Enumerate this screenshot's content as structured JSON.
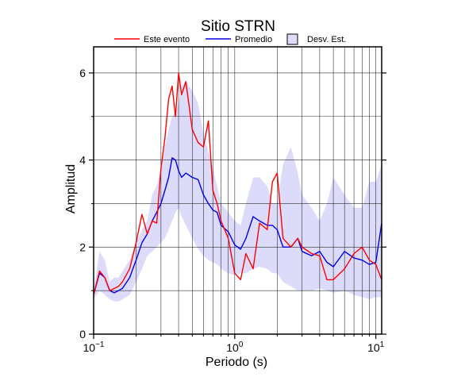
{
  "chart_data": {
    "type": "line",
    "title": "Sitio STRN",
    "xlabel": "Periodo (s)",
    "ylabel": "Amplitud",
    "xscale": "log",
    "xlim": [
      0.1,
      11
    ],
    "ylim": [
      0,
      6.6
    ],
    "yticks": [
      0,
      2,
      4,
      6
    ],
    "xticks": [
      {
        "base": "10",
        "exp": "−1"
      },
      {
        "base": "10",
        "exp": "0"
      },
      {
        "base": "10",
        "exp": "1"
      }
    ],
    "grid": true,
    "legend_position": "top",
    "colors": {
      "este_evento": "#ff0000",
      "promedio": "#0000ee",
      "desv_band": "#dcdcfa"
    },
    "legend": [
      {
        "label": "Este evento",
        "kind": "line",
        "color": "#ff0000"
      },
      {
        "label": "Promedio",
        "kind": "line",
        "color": "#0000ee"
      },
      {
        "label": "Desv. Est.",
        "kind": "box",
        "color": "#dcdcfa"
      }
    ],
    "x": [
      0.1,
      0.11,
      0.12,
      0.13,
      0.14,
      0.15,
      0.16,
      0.18,
      0.2,
      0.22,
      0.24,
      0.26,
      0.28,
      0.3,
      0.32,
      0.34,
      0.36,
      0.38,
      0.4,
      0.42,
      0.45,
      0.5,
      0.55,
      0.6,
      0.65,
      0.7,
      0.75,
      0.8,
      0.9,
      1.0,
      1.1,
      1.2,
      1.35,
      1.5,
      1.7,
      1.85,
      2.0,
      2.2,
      2.5,
      2.8,
      3.0,
      3.5,
      4.0,
      4.5,
      5.0,
      6.0,
      7.0,
      8.0,
      9.0,
      10.0,
      11.0
    ],
    "series": [
      {
        "name": "Este evento",
        "values": [
          0.9,
          1.45,
          1.3,
          1.0,
          1.05,
          1.1,
          1.2,
          1.5,
          2.1,
          2.75,
          2.3,
          2.6,
          2.55,
          3.8,
          4.5,
          5.4,
          5.7,
          5.0,
          6.0,
          5.5,
          5.8,
          4.7,
          4.4,
          4.3,
          4.9,
          3.3,
          3.0,
          2.6,
          2.2,
          1.4,
          1.25,
          1.85,
          1.5,
          2.55,
          2.4,
          3.5,
          3.7,
          2.2,
          2.0,
          2.2,
          2.0,
          1.85,
          1.8,
          1.25,
          1.25,
          1.5,
          1.85,
          2.0,
          1.7,
          1.6,
          1.25
        ]
      },
      {
        "name": "Promedio",
        "values": [
          0.9,
          1.4,
          1.3,
          1.0,
          0.95,
          1.0,
          1.05,
          1.3,
          1.7,
          2.1,
          2.3,
          2.6,
          2.8,
          3.0,
          3.3,
          3.6,
          4.05,
          4.0,
          3.75,
          3.6,
          3.7,
          3.6,
          3.55,
          3.2,
          3.0,
          2.85,
          2.8,
          2.5,
          2.35,
          2.05,
          1.95,
          2.2,
          2.7,
          2.6,
          2.5,
          2.5,
          2.4,
          2.0,
          2.0,
          2.2,
          1.9,
          1.8,
          1.9,
          1.65,
          1.55,
          1.9,
          1.75,
          1.7,
          1.6,
          1.65,
          2.55
        ]
      },
      {
        "name": "Desv. Est. (superior)",
        "values": [
          1.0,
          1.9,
          1.7,
          1.2,
          1.3,
          1.3,
          1.45,
          1.7,
          2.1,
          2.4,
          2.6,
          3.2,
          3.4,
          3.8,
          4.3,
          4.7,
          5.0,
          5.1,
          5.3,
          5.7,
          5.8,
          5.6,
          5.3,
          4.6,
          4.2,
          3.8,
          3.4,
          3.0,
          2.8,
          2.6,
          2.5,
          3.0,
          3.6,
          3.6,
          3.4,
          3.0,
          3.0,
          3.9,
          4.3,
          3.7,
          3.2,
          2.9,
          2.6,
          3.0,
          3.6,
          3.2,
          2.9,
          2.9,
          3.5,
          3.5,
          3.9
        ]
      },
      {
        "name": "Desv. Est. (inferior)",
        "values": [
          0.8,
          1.0,
          0.9,
          0.8,
          0.75,
          0.75,
          0.8,
          0.9,
          1.2,
          1.5,
          1.8,
          1.9,
          2.0,
          2.1,
          2.2,
          2.4,
          2.6,
          2.8,
          2.9,
          2.7,
          2.5,
          2.2,
          1.95,
          1.8,
          1.7,
          1.65,
          1.6,
          1.5,
          1.4,
          1.35,
          1.4,
          1.4,
          1.5,
          1.55,
          1.5,
          1.4,
          1.4,
          1.2,
          1.1,
          1.0,
          1.0,
          1.0,
          1.05,
          1.0,
          0.95,
          1.0,
          0.9,
          0.85,
          0.8,
          0.85,
          0.85
        ]
      }
    ]
  }
}
